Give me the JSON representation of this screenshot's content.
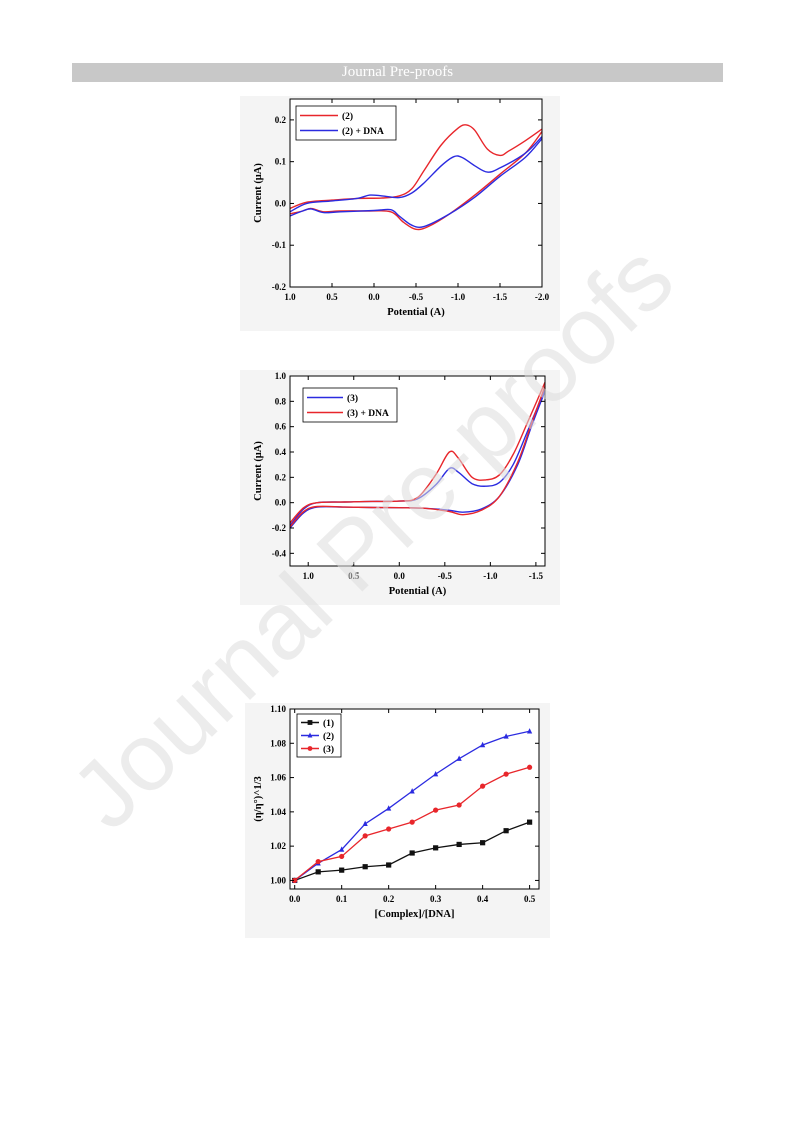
{
  "header": {
    "banner": "Journal Pre-proofs"
  },
  "watermark": {
    "text": "Journal Pre-proofs"
  },
  "chart_data": [
    {
      "type": "line",
      "xlabel": "Potential (A)",
      "ylabel": "Current (μA)",
      "xlim": [
        1.0,
        -2.0
      ],
      "ylim": [
        -0.2,
        0.25
      ],
      "xticks": [
        1.0,
        0.5,
        0.0,
        -0.5,
        -1.0,
        -1.5,
        -2.0
      ],
      "xtick_labels": [
        "1.0",
        "0.5",
        "0.0",
        "-0.5",
        "-1.0",
        "-1.5",
        "-2.0"
      ],
      "yticks": [
        -0.2,
        -0.1,
        0.0,
        0.1,
        0.2
      ],
      "ytick_labels": [
        "-0.2",
        "-0.1",
        "0.0",
        "0.1",
        "0.2"
      ],
      "legend_position": "top-left",
      "grid": false,
      "series": [
        {
          "name": "(2)",
          "color": "#e8262b",
          "upper": [
            [
              1.0,
              -0.012
            ],
            [
              0.8,
              0.003
            ],
            [
              0.5,
              0.008
            ],
            [
              0.2,
              0.012
            ],
            [
              -0.1,
              0.013
            ],
            [
              -0.3,
              0.018
            ],
            [
              -0.45,
              0.035
            ],
            [
              -0.6,
              0.08
            ],
            [
              -0.8,
              0.14
            ],
            [
              -1.0,
              0.18
            ],
            [
              -1.1,
              0.188
            ],
            [
              -1.2,
              0.175
            ],
            [
              -1.35,
              0.13
            ],
            [
              -1.5,
              0.115
            ],
            [
              -1.6,
              0.125
            ],
            [
              -1.8,
              0.15
            ],
            [
              -2.0,
              0.178
            ]
          ],
          "lower": [
            [
              1.0,
              -0.025
            ],
            [
              0.85,
              -0.018
            ],
            [
              0.75,
              -0.012
            ],
            [
              0.6,
              -0.02
            ],
            [
              0.4,
              -0.018
            ],
            [
              0.1,
              -0.018
            ],
            [
              -0.2,
              -0.02
            ],
            [
              -0.35,
              -0.045
            ],
            [
              -0.5,
              -0.062
            ],
            [
              -0.65,
              -0.055
            ],
            [
              -0.9,
              -0.025
            ],
            [
              -1.2,
              0.02
            ],
            [
              -1.5,
              0.07
            ],
            [
              -1.8,
              0.12
            ],
            [
              -2.0,
              0.172
            ]
          ]
        },
        {
          "name": "(2) + DNA",
          "color": "#2b2be0",
          "upper": [
            [
              1.0,
              -0.02
            ],
            [
              0.8,
              0.0
            ],
            [
              0.5,
              0.006
            ],
            [
              0.2,
              0.012
            ],
            [
              0.05,
              0.02
            ],
            [
              -0.1,
              0.018
            ],
            [
              -0.3,
              0.014
            ],
            [
              -0.45,
              0.025
            ],
            [
              -0.6,
              0.05
            ],
            [
              -0.8,
              0.09
            ],
            [
              -0.95,
              0.112
            ],
            [
              -1.05,
              0.11
            ],
            [
              -1.2,
              0.09
            ],
            [
              -1.35,
              0.075
            ],
            [
              -1.5,
              0.085
            ],
            [
              -1.8,
              0.12
            ],
            [
              -2.0,
              0.16
            ]
          ],
          "lower": [
            [
              1.0,
              -0.03
            ],
            [
              0.85,
              -0.018
            ],
            [
              0.75,
              -0.013
            ],
            [
              0.6,
              -0.022
            ],
            [
              0.4,
              -0.02
            ],
            [
              0.0,
              -0.017
            ],
            [
              -0.2,
              -0.015
            ],
            [
              -0.3,
              -0.03
            ],
            [
              -0.45,
              -0.052
            ],
            [
              -0.6,
              -0.055
            ],
            [
              -0.9,
              -0.025
            ],
            [
              -1.2,
              0.015
            ],
            [
              -1.5,
              0.065
            ],
            [
              -1.8,
              0.11
            ],
            [
              -2.0,
              0.155
            ]
          ]
        }
      ]
    },
    {
      "type": "line",
      "xlabel": "Potential (A)",
      "ylabel": "Current (μA)",
      "xlim": [
        1.2,
        -1.6
      ],
      "ylim": [
        -0.5,
        1.0
      ],
      "xticks": [
        1.0,
        0.5,
        0.0,
        -0.5,
        -1.0,
        -1.5
      ],
      "xtick_labels": [
        "1.0",
        "0.5",
        "0.0",
        "-0.5",
        "-1.0",
        "-1.5"
      ],
      "yticks": [
        -0.4,
        -0.2,
        0.0,
        0.2,
        0.4,
        0.6,
        0.8,
        1.0
      ],
      "ytick_labels": [
        "-0.4",
        "-0.2",
        "0.0",
        "0.2",
        "0.4",
        "0.6",
        "0.8",
        "1.0"
      ],
      "legend_position": "top-left",
      "grid": false,
      "series": [
        {
          "name": "(3)",
          "color": "#2b2be0",
          "upper": [
            [
              1.2,
              -0.18
            ],
            [
              1.05,
              -0.05
            ],
            [
              0.9,
              0.0
            ],
            [
              0.6,
              0.005
            ],
            [
              0.3,
              0.01
            ],
            [
              0.0,
              0.012
            ],
            [
              -0.2,
              0.03
            ],
            [
              -0.4,
              0.14
            ],
            [
              -0.55,
              0.27
            ],
            [
              -0.65,
              0.24
            ],
            [
              -0.8,
              0.15
            ],
            [
              -0.95,
              0.13
            ],
            [
              -1.1,
              0.16
            ],
            [
              -1.25,
              0.3
            ],
            [
              -1.4,
              0.55
            ],
            [
              -1.6,
              0.9
            ]
          ],
          "lower": [
            [
              1.2,
              -0.2
            ],
            [
              1.05,
              -0.08
            ],
            [
              0.9,
              -0.035
            ],
            [
              0.6,
              -0.035
            ],
            [
              0.3,
              -0.038
            ],
            [
              0.0,
              -0.04
            ],
            [
              -0.3,
              -0.045
            ],
            [
              -0.55,
              -0.06
            ],
            [
              -0.7,
              -0.075
            ],
            [
              -0.9,
              -0.05
            ],
            [
              -1.1,
              0.05
            ],
            [
              -1.3,
              0.3
            ],
            [
              -1.45,
              0.6
            ],
            [
              -1.6,
              0.88
            ]
          ]
        },
        {
          "name": "(3) + DNA",
          "color": "#e8262b",
          "upper": [
            [
              1.2,
              -0.16
            ],
            [
              1.05,
              -0.04
            ],
            [
              0.9,
              0.0
            ],
            [
              0.6,
              0.005
            ],
            [
              0.3,
              0.01
            ],
            [
              0.0,
              0.012
            ],
            [
              -0.2,
              0.04
            ],
            [
              -0.4,
              0.22
            ],
            [
              -0.55,
              0.4
            ],
            [
              -0.65,
              0.35
            ],
            [
              -0.8,
              0.2
            ],
            [
              -0.95,
              0.18
            ],
            [
              -1.1,
              0.22
            ],
            [
              -1.25,
              0.38
            ],
            [
              -1.4,
              0.62
            ],
            [
              -1.6,
              0.95
            ]
          ],
          "lower": [
            [
              1.2,
              -0.19
            ],
            [
              1.05,
              -0.07
            ],
            [
              0.9,
              -0.03
            ],
            [
              0.6,
              -0.035
            ],
            [
              0.3,
              -0.038
            ],
            [
              0.0,
              -0.04
            ],
            [
              -0.3,
              -0.045
            ],
            [
              -0.55,
              -0.07
            ],
            [
              -0.7,
              -0.095
            ],
            [
              -0.9,
              -0.06
            ],
            [
              -1.1,
              0.05
            ],
            [
              -1.3,
              0.32
            ],
            [
              -1.45,
              0.62
            ],
            [
              -1.6,
              0.92
            ]
          ]
        }
      ]
    },
    {
      "type": "line",
      "xlabel": "[Complex]/[DNA]",
      "ylabel": "(η/η°)^1/3",
      "xlim": [
        -0.01,
        0.52
      ],
      "ylim": [
        0.995,
        1.1
      ],
      "xticks": [
        0.0,
        0.1,
        0.2,
        0.3,
        0.4,
        0.5
      ],
      "xtick_labels": [
        "0.0",
        "0.1",
        "0.2",
        "0.3",
        "0.4",
        "0.5"
      ],
      "yticks": [
        1.0,
        1.02,
        1.04,
        1.06,
        1.08,
        1.1
      ],
      "ytick_labels": [
        "1.00",
        "1.02",
        "1.04",
        "1.06",
        "1.08",
        "1.10"
      ],
      "legend_position": "top-left",
      "grid": false,
      "x": [
        0.0,
        0.05,
        0.1,
        0.15,
        0.2,
        0.25,
        0.3,
        0.35,
        0.4,
        0.45,
        0.5
      ],
      "series": [
        {
          "name": "(1)",
          "color": "#111111",
          "marker": "square",
          "values": [
            1.0,
            1.005,
            1.006,
            1.008,
            1.009,
            1.016,
            1.019,
            1.021,
            1.022,
            1.029,
            1.034
          ]
        },
        {
          "name": "(2)",
          "color": "#2b2be0",
          "marker": "triangle",
          "values": [
            1.0,
            1.01,
            1.018,
            1.033,
            1.042,
            1.052,
            1.062,
            1.071,
            1.079,
            1.084,
            1.087
          ]
        },
        {
          "name": "(3)",
          "color": "#e8262b",
          "marker": "circle",
          "values": [
            1.0,
            1.011,
            1.014,
            1.026,
            1.03,
            1.034,
            1.041,
            1.044,
            1.055,
            1.062,
            1.066
          ]
        }
      ]
    }
  ]
}
